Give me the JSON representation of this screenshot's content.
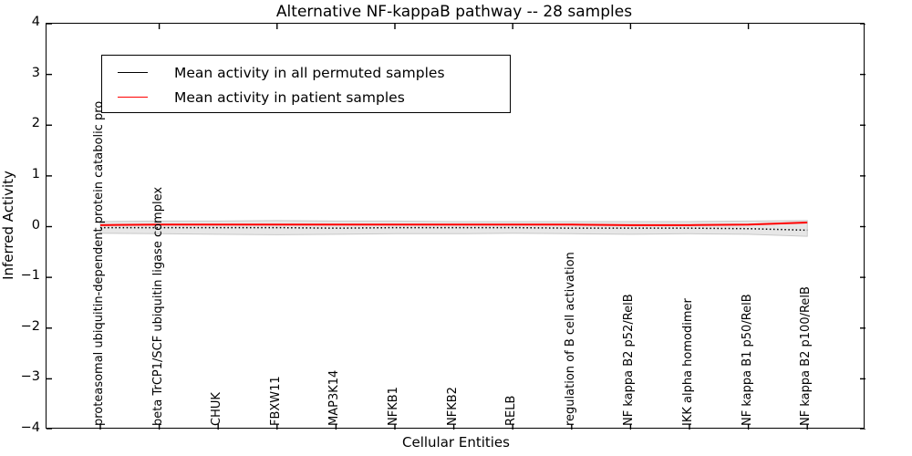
{
  "title": "Alternative NF-kappaB pathway -- 28 samples",
  "axes": {
    "y_label": "Inferred Activity",
    "x_label": "Cellular Entities",
    "y_tick_labels": [
      "4",
      "3",
      "2",
      "1",
      "0",
      "−1",
      "−2",
      "−3",
      "−4"
    ],
    "y_tick_values": [
      4,
      3,
      2,
      1,
      0,
      -1,
      -2,
      -3,
      -4
    ]
  },
  "legend": {
    "items": [
      {
        "label": "Mean activity in all permuted samples",
        "color": "#000000"
      },
      {
        "label": "Mean activity in patient samples",
        "color": "#ff0000"
      }
    ]
  },
  "colors": {
    "permuted_line": "#000000",
    "patient_line": "#ff0000",
    "band_fill": "#e7e7e7",
    "band_edge": "#c8c8c8"
  },
  "chart_data": {
    "type": "line",
    "title": "Alternative NF-kappaB pathway -- 28 samples",
    "xlabel": "Cellular Entities",
    "ylabel": "Inferred Activity",
    "ylim": [
      -4,
      4
    ],
    "grid": false,
    "legend_position": "upper left",
    "categories": [
      "proteasomal ubiquitin-dependent protein catabolic pro",
      "beta TrCP1/SCF ubiquitin ligase complex",
      "CHUK",
      "FBXW11",
      "MAP3K14",
      "NFKB1",
      "NFKB2",
      "RELB",
      "regulation of B cell activation",
      "NF kappa B2 p52/RelB",
      "IKK alpha homodimer",
      "NF kappa B1 p50/RelB",
      "NF kappa B2 p100/RelB"
    ],
    "series": [
      {
        "name": "Mean activity in all permuted samples",
        "color": "#000000",
        "style": "dotted",
        "values": [
          -0.02,
          -0.02,
          -0.02,
          -0.02,
          -0.03,
          -0.02,
          -0.02,
          -0.02,
          -0.03,
          -0.03,
          -0.03,
          -0.04,
          -0.07
        ]
      },
      {
        "name": "Mean activity in patient samples",
        "color": "#ff0000",
        "style": "solid",
        "values": [
          0.03,
          0.04,
          0.04,
          0.04,
          0.04,
          0.04,
          0.04,
          0.04,
          0.04,
          0.03,
          0.03,
          0.04,
          0.08
        ]
      }
    ],
    "band": {
      "name": "permuted std band",
      "upper": [
        0.1,
        0.11,
        0.11,
        0.12,
        0.11,
        0.11,
        0.1,
        0.1,
        0.1,
        0.1,
        0.1,
        0.11,
        0.12
      ],
      "lower": [
        -0.13,
        -0.14,
        -0.15,
        -0.16,
        -0.15,
        -0.14,
        -0.14,
        -0.13,
        -0.14,
        -0.15,
        -0.14,
        -0.15,
        -0.19
      ]
    }
  }
}
